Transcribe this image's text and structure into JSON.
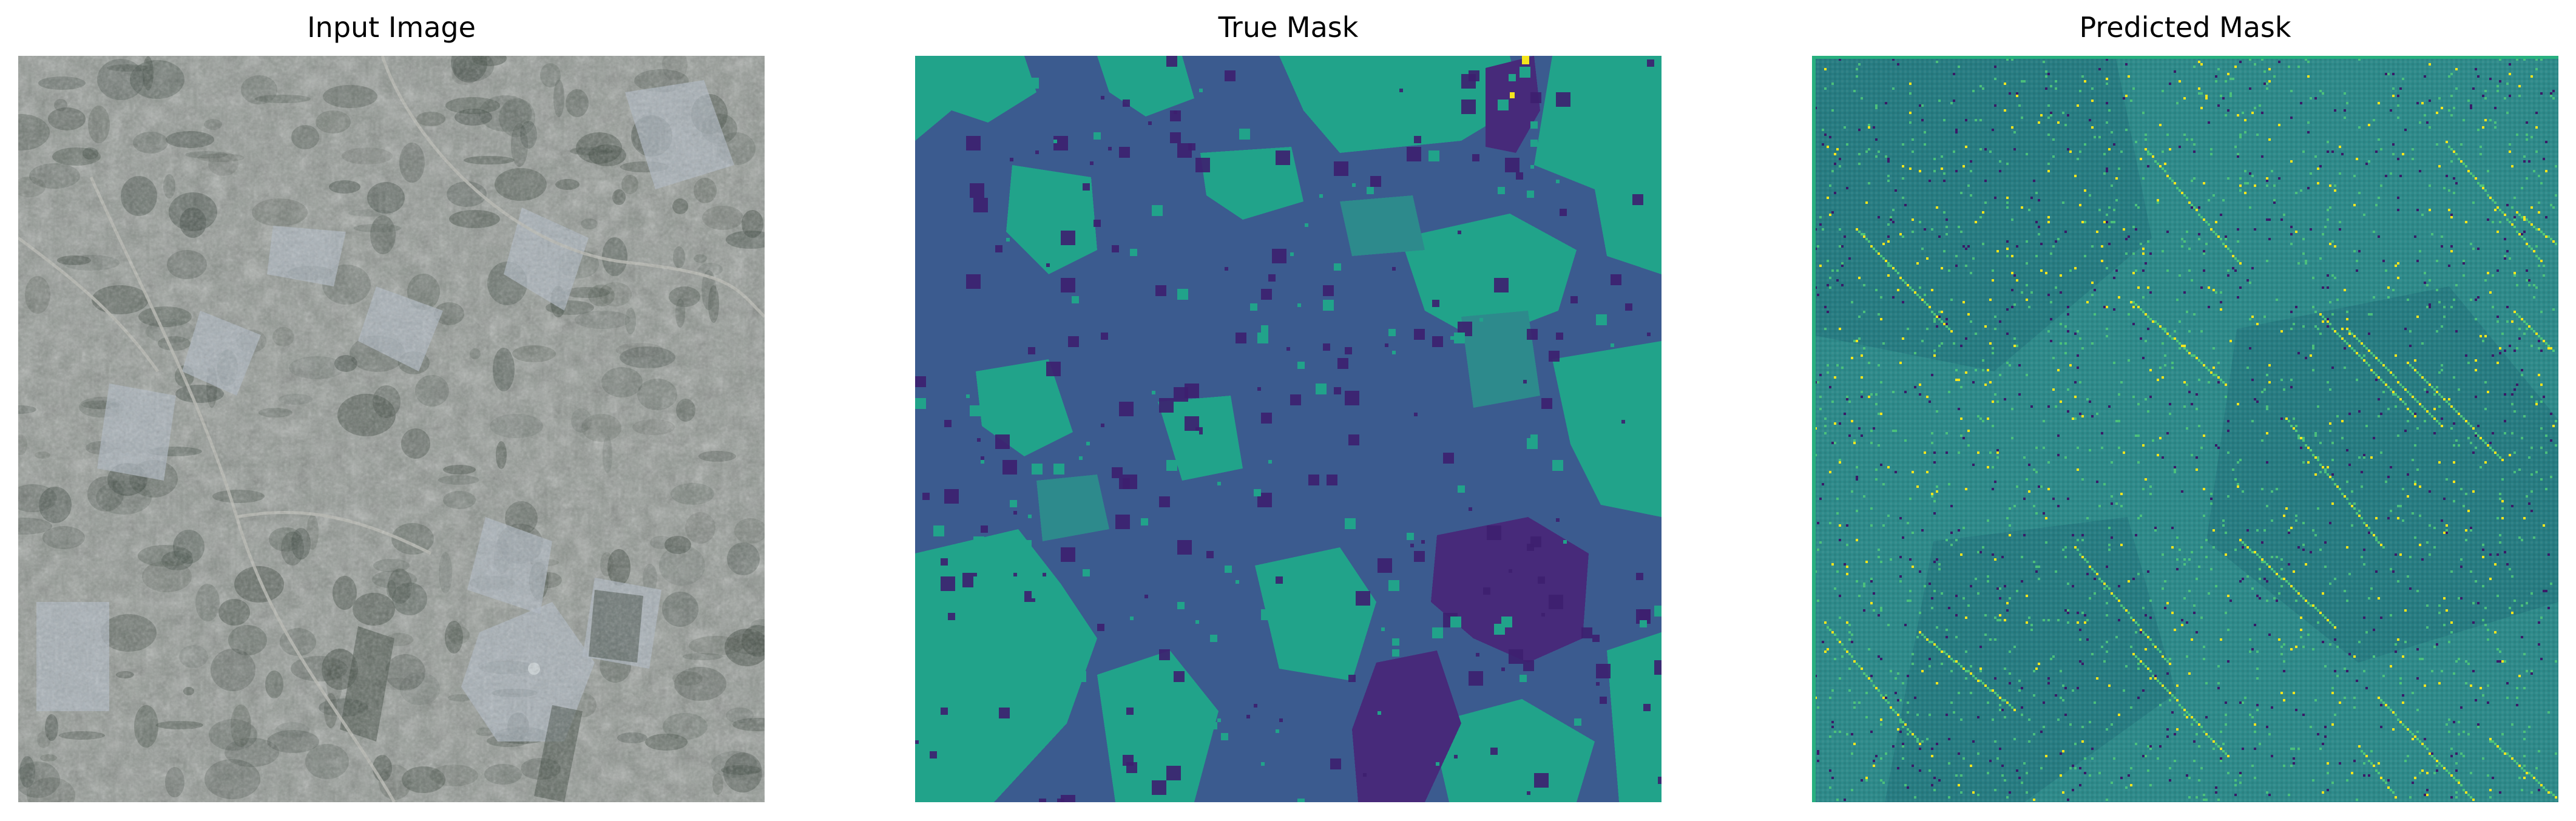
{
  "figure": {
    "panels": [
      {
        "title": "Input Image",
        "content": "satellite-aerial-photo",
        "palette": {
          "base": "#8c938d",
          "dark": "#3f4a42",
          "light": "#c9d1d4",
          "road": "#b7b9b2",
          "field": "#aeb8c2"
        }
      },
      {
        "title": "True Mask",
        "content": "segmentation-mask",
        "palette": {
          "class_background": "#3b5b8f",
          "class_vegetation": "#21a38a",
          "class_teal": "#2d8a8c",
          "class_dark": "#3d1f6f",
          "class_purple": "#472a7a",
          "class_yellow": "#f4e51d"
        }
      },
      {
        "title": "Predicted Mask",
        "content": "predicted-segmentation-mask",
        "palette": {
          "base": "#2e8a8a",
          "alt": "#25767f",
          "speckle_light": "#4fc57a",
          "speckle_yellow": "#f4e51d",
          "speckle_dark": "#3a1b68",
          "border": "#28b07f"
        }
      }
    ]
  }
}
